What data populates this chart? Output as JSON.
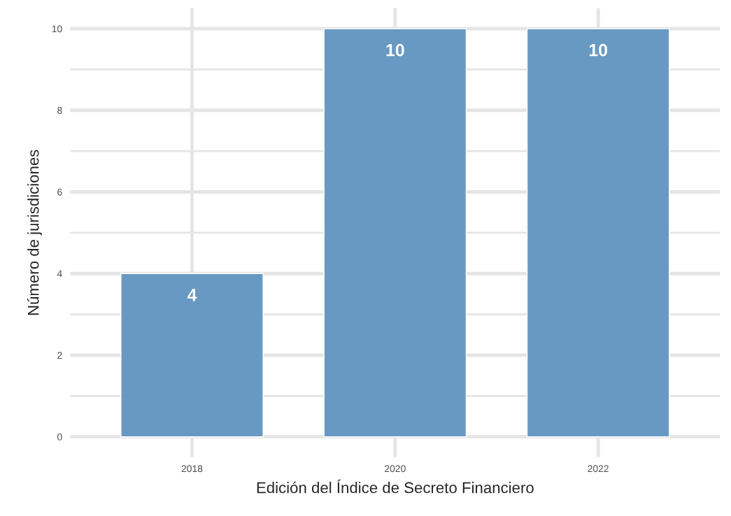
{
  "chart_data": {
    "type": "bar",
    "xlabel": "Edición del Índice de Secreto Financiero",
    "ylabel": "Número de jurisdiciones",
    "categories": [
      "2018",
      "2020",
      "2022"
    ],
    "values": [
      4,
      10,
      10
    ],
    "color": "#6899c2",
    "ylim": [
      -0.5,
      10.5
    ],
    "yticks": [
      0,
      2,
      4,
      6,
      8,
      10
    ],
    "grid": true,
    "data_labels": true
  }
}
